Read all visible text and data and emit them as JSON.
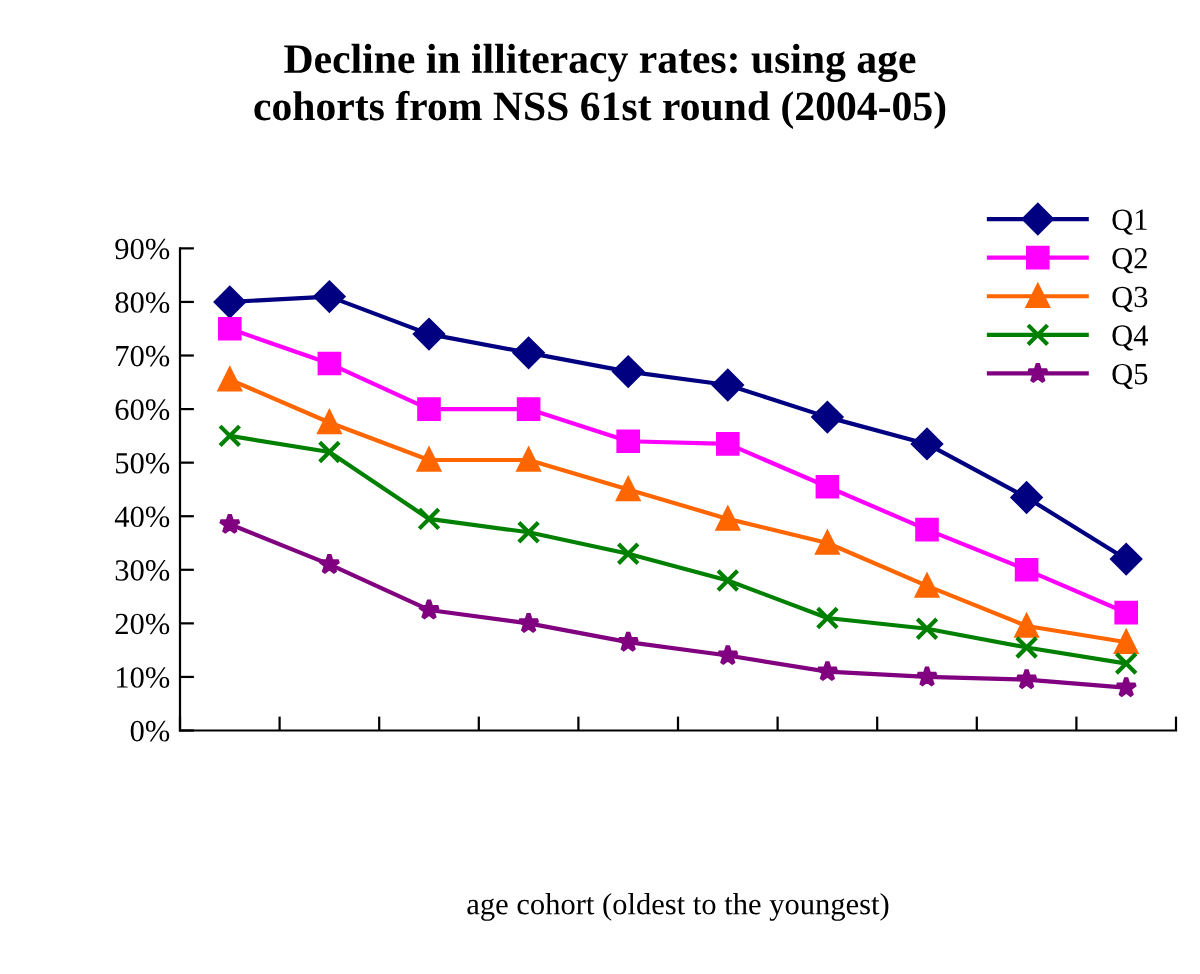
{
  "chart_data": {
    "type": "line",
    "title": "Decline in illiteracy rates: using age\ncohorts from NSS 61st round (2004-05)",
    "xlabel": "age cohort (oldest to the youngest)",
    "categories": [
      null,
      null,
      null,
      null,
      null,
      null,
      null,
      null,
      null,
      null
    ],
    "series": [
      {
        "name": "Q1",
        "color": "#000080",
        "marker": "diamond",
        "values": [
          80,
          81,
          74,
          70.5,
          67,
          64.5,
          58.5,
          53.5,
          43.5,
          32
        ]
      },
      {
        "name": "Q2",
        "color": "#ff00ff",
        "marker": "square",
        "values": [
          75,
          68.5,
          60,
          60,
          54,
          53.5,
          45.5,
          37.5,
          30,
          22
        ]
      },
      {
        "name": "Q3",
        "color": "#ff6600",
        "marker": "triangle",
        "values": [
          65.5,
          57.5,
          50.5,
          50.5,
          45,
          39.5,
          35,
          27,
          19.5,
          16.5
        ]
      },
      {
        "name": "Q4",
        "color": "#008000",
        "marker": "cross",
        "values": [
          55,
          52,
          39.5,
          37,
          33,
          28,
          21,
          19,
          15.5,
          12.5
        ]
      },
      {
        "name": "Q5",
        "color": "#800080",
        "marker": "star",
        "values": [
          38.5,
          31,
          22.5,
          20,
          16.5,
          14,
          11,
          10,
          9.5,
          8
        ]
      }
    ],
    "ylim": [
      0,
      90
    ],
    "yticks": [
      {
        "value": 0,
        "label": "0%"
      },
      {
        "value": 10,
        "label": "10%"
      },
      {
        "value": 20,
        "label": "20%"
      },
      {
        "value": 30,
        "label": "30%"
      },
      {
        "value": 40,
        "label": "40%"
      },
      {
        "value": 50,
        "label": "50%"
      },
      {
        "value": 60,
        "label": "60%"
      },
      {
        "value": 70,
        "label": "70%"
      },
      {
        "value": 80,
        "label": "80%"
      },
      {
        "value": 90,
        "label": "90%"
      }
    ],
    "grid": false,
    "legend": "top right",
    "line_style": "solid"
  }
}
